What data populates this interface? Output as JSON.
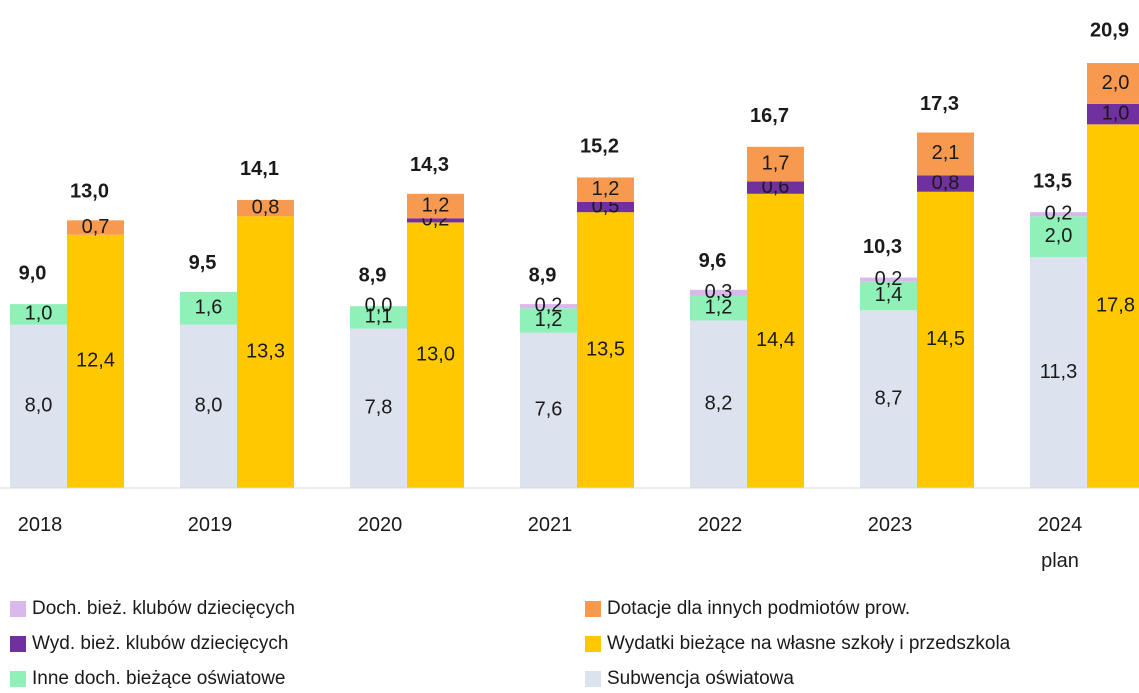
{
  "chart_data": {
    "type": "grouped_stacked_bar",
    "categories": [
      "2018",
      "2019",
      "2020",
      "2021",
      "2022",
      "2023",
      "2024 plan"
    ],
    "series": [
      {
        "name": "Doch. bież. klubów dziecięcych",
        "color": "#d9b8ec",
        "stack": 0,
        "values": [
          null,
          null,
          0.0,
          0.2,
          0.3,
          0.2,
          0.2
        ],
        "value_labels": [
          null,
          null,
          "0,0",
          "0,2",
          "0,3",
          "0,2",
          "0,2"
        ]
      },
      {
        "name": "Dotacje dla innych podmiotów prow.",
        "color": "#f79a4f",
        "stack": 1,
        "values": [
          0.7,
          0.8,
          1.2,
          1.2,
          1.7,
          2.1,
          2.0
        ],
        "value_labels": [
          "0,7",
          "0,8",
          "1,2",
          "1,2",
          "1,7",
          "2,1",
          "2,0"
        ]
      },
      {
        "name": "Wyd. bież. klubów dziecięcych",
        "color": "#7030a0",
        "stack": 1,
        "values": [
          null,
          null,
          0.2,
          0.5,
          0.6,
          0.8,
          1.0
        ],
        "value_labels": [
          null,
          null,
          "0,2",
          "0,5",
          "0,6",
          "0,8",
          "1,0"
        ]
      },
      {
        "name": "Wydatki bieżące na własne szkoły i przedszkola",
        "color": "#ffc800",
        "stack": 1,
        "values": [
          12.4,
          13.3,
          13.0,
          13.5,
          14.4,
          14.5,
          17.8
        ],
        "value_labels": [
          "12,4",
          "13,3",
          "13,0",
          "13,5",
          "14,4",
          "14,5",
          "17,8"
        ]
      },
      {
        "name": "Inne doch. bieżące oświatowe",
        "color": "#8ff0b8",
        "stack": 0,
        "values": [
          1.0,
          1.6,
          1.1,
          1.2,
          1.2,
          1.4,
          2.0
        ],
        "value_labels": [
          "1,0",
          "1,6",
          "1,1",
          "1,2",
          "1,2",
          "1,4",
          "2,0"
        ]
      },
      {
        "name": "Subwencja oświatowa",
        "color": "#dce3ee",
        "stack": 0,
        "values": [
          8.0,
          8.0,
          7.8,
          7.6,
          8.2,
          8.7,
          11.3
        ],
        "value_labels": [
          "8,0",
          "8,0",
          "7,8",
          "7,6",
          "8,2",
          "8,7",
          "11,3"
        ]
      }
    ],
    "stack_totals": [
      {
        "values": [
          9.0,
          9.5,
          8.9,
          8.9,
          9.6,
          10.3,
          13.5
        ],
        "value_labels": [
          "9,0",
          "9,5",
          "8,9",
          "8,9",
          "9,6",
          "10,3",
          "13,5"
        ]
      },
      {
        "values": [
          13.0,
          14.1,
          14.3,
          15.2,
          16.7,
          17.3,
          20.9
        ],
        "value_labels": [
          "13,0",
          "14,1",
          "14,3",
          "15,2",
          "16,7",
          "17,3",
          "20,9"
        ]
      }
    ]
  }
}
